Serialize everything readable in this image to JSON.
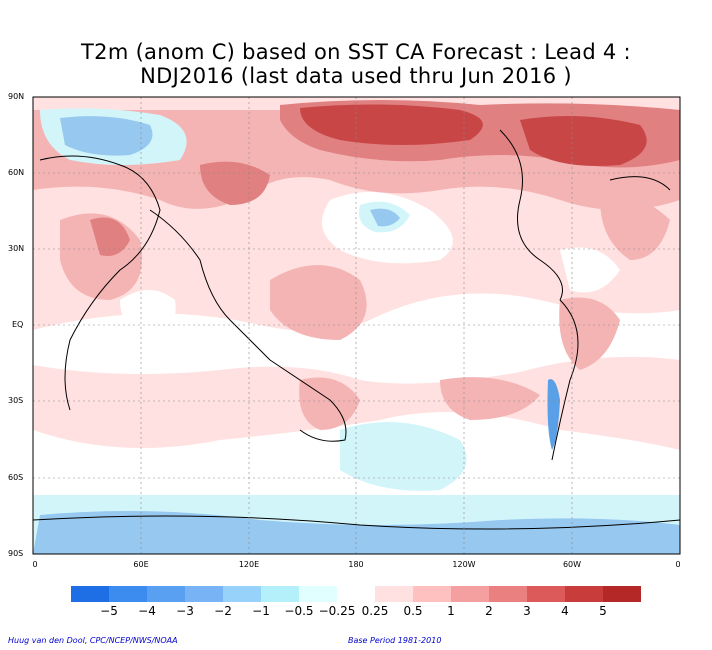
{
  "title_line1": "T2m (anom C) based on SST CA Forecast : Lead 4 :",
  "title_line2": "NDJ2016 (last data used thru Jun 2016 )",
  "lat_labels": [
    "90N",
    "60N",
    "30N",
    "EQ",
    "30S",
    "60S",
    "90S"
  ],
  "lon_labels": [
    "0",
    "60E",
    "120E",
    "180",
    "120W",
    "60W",
    "0"
  ],
  "colorbar": {
    "colors": [
      "#1e6fe6",
      "#3c8cf0",
      "#5aa0f2",
      "#78b4f5",
      "#96d2fa",
      "#b4f0fa",
      "#e1ffff",
      "#ffffff",
      "#ffe1e1",
      "#ffc0c0",
      "#f5a0a0",
      "#eb8080",
      "#dc5a5a",
      "#c83c3c",
      "#b42828"
    ],
    "labels": [
      "−5",
      "−4",
      "−3",
      "−2",
      "−1",
      "−0.5",
      "−0.25",
      "0.25",
      "0.5",
      "1",
      "2",
      "3",
      "4",
      "5"
    ]
  },
  "credit": "Huug van den Dool, CPC/NCEP/NWS/NOAA",
  "base_period": "Base Period 1981-2010",
  "colors": {
    "light_red": "#ffe1e1",
    "pink": "#f5b4b4",
    "red": "#e08080",
    "dark_red": "#c84646",
    "light_blue": "#d2f5fa",
    "blue": "#96c8f0",
    "dark_blue": "#5aa0e6"
  }
}
